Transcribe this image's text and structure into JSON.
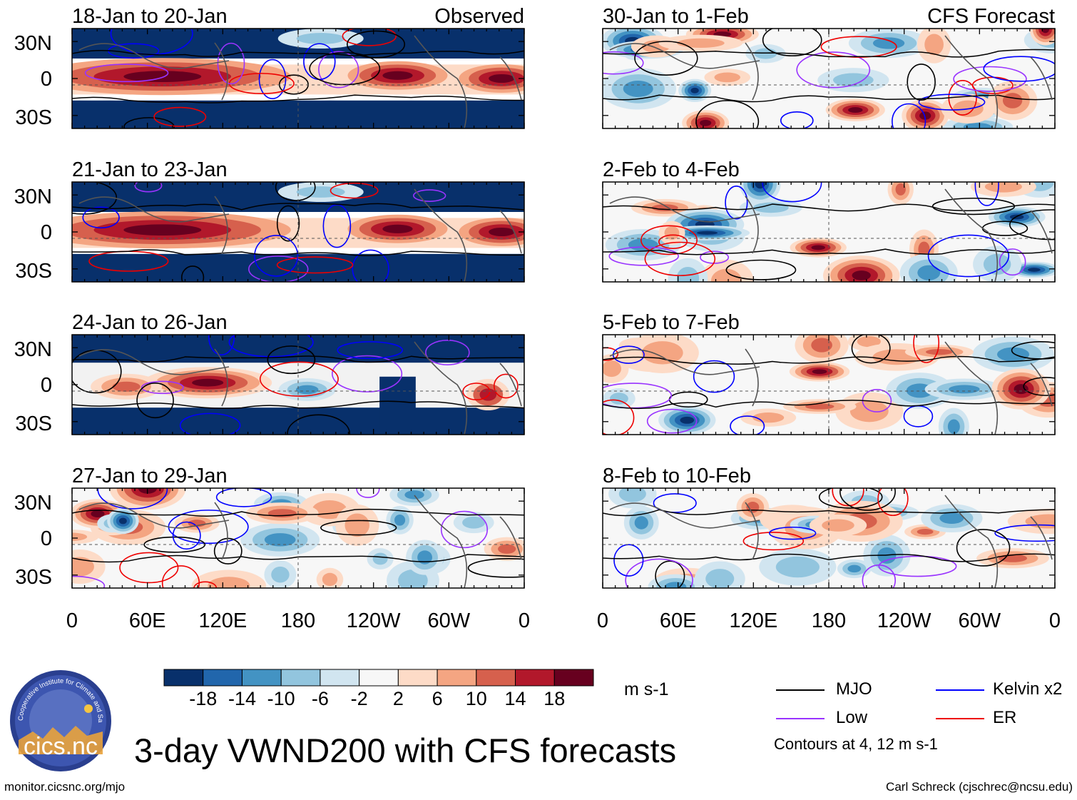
{
  "title": "3-day VWND200 with CFS forecasts",
  "source_url": "monitor.cicsnc.org/mjo",
  "credit": "Carl Schreck (cjschrec@ncsu.edu)",
  "column_headers": {
    "left": "Observed",
    "right": "CFS Forecast"
  },
  "panels_left": [
    {
      "period": "18-Jan to 20-Jan",
      "mode": "observed"
    },
    {
      "period": "21-Jan to 23-Jan",
      "mode": "observed"
    },
    {
      "period": "24-Jan to 26-Jan",
      "mode": "mixed"
    },
    {
      "period": "27-Jan to 29-Jan",
      "mode": "forecast"
    }
  ],
  "panels_right": [
    {
      "period": "30-Jan to 1-Feb",
      "mode": "forecast"
    },
    {
      "period": "2-Feb to 4-Feb",
      "mode": "forecast"
    },
    {
      "period": "5-Feb to 7-Feb",
      "mode": "forecast"
    },
    {
      "period": "8-Feb to 10-Feb",
      "mode": "forecast"
    }
  ],
  "lat_labels": [
    "30N",
    "0",
    "30S"
  ],
  "lon_labels": [
    "0",
    "60E",
    "120E",
    "180",
    "120W",
    "60W",
    "0"
  ],
  "colorbar": {
    "labels": [
      "-18",
      "-14",
      "-10",
      "-6",
      "-2",
      "2",
      "6",
      "10",
      "14",
      "18"
    ],
    "colors": [
      "#08306b",
      "#2166ac",
      "#4393c3",
      "#92c5de",
      "#d1e5f0",
      "#f7f7f7",
      "#fddbc7",
      "#f4a582",
      "#d6604d",
      "#b2182b",
      "#67001f"
    ],
    "units": "m s-1"
  },
  "legend": [
    {
      "label": "MJO",
      "color": "#000000"
    },
    {
      "label": "Kelvin x2",
      "color": "#0000ff"
    },
    {
      "label": "Low",
      "color": "#9933ff"
    },
    {
      "label": "ER",
      "color": "#ee0000"
    }
  ],
  "contour_note": "Contours at 4, 12 m s-1",
  "logo": {
    "text": "cics.nc",
    "ring_text": "Cooperative Institute for Climate and Satellites"
  }
}
